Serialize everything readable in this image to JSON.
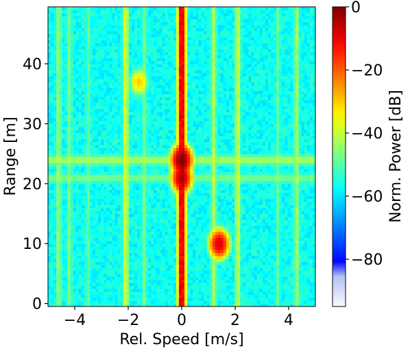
{
  "chart_data": {
    "type": "heatmap",
    "title": "",
    "xlabel": "Rel. Speed [m/s]",
    "ylabel": "Range [m]",
    "xlim": [
      -5,
      5
    ],
    "ylim": [
      -0.5,
      49.5
    ],
    "x_ticks": [
      -4,
      -2,
      0,
      2,
      4
    ],
    "x_tick_labels": [
      "−4",
      "−2",
      "0",
      "2",
      "4"
    ],
    "y_ticks": [
      0,
      10,
      20,
      30,
      40
    ],
    "y_tick_labels": [
      "0",
      "10",
      "20",
      "30",
      "40"
    ],
    "colorbar": {
      "label": "Norm. Power [dB]",
      "range": [
        -95,
        0
      ],
      "ticks": [
        0,
        -20,
        -40,
        -60,
        -80
      ],
      "tick_labels": [
        "0",
        "−20",
        "−40",
        "−60",
        "−80"
      ],
      "colormap": "jet"
    },
    "background_level_db": -57,
    "vertical_streaks": [
      {
        "x": 0.0,
        "level_db": -8
      },
      {
        "x": 1.2,
        "level_db": -42
      },
      {
        "x": -2.1,
        "level_db": -38
      },
      {
        "x": 2.1,
        "level_db": -40
      },
      {
        "x": -4.6,
        "level_db": -45
      },
      {
        "x": -4.2,
        "level_db": -47
      },
      {
        "x": 4.3,
        "level_db": -44
      },
      {
        "x": 3.6,
        "level_db": -50
      },
      {
        "x": -3.5,
        "level_db": -50
      },
      {
        "x": -1.4,
        "level_db": -48
      }
    ],
    "horizontal_bands": [
      {
        "y": 24,
        "level_db": -43
      },
      {
        "y": 21,
        "level_db": -48
      }
    ],
    "targets": [
      {
        "x": 0.0,
        "y": 24,
        "level_db": 0
      },
      {
        "x": 0.0,
        "y": 21,
        "level_db": -5
      },
      {
        "x": 1.4,
        "y": 10,
        "level_db": -8
      },
      {
        "x": -1.6,
        "y": 37,
        "level_db": -30
      }
    ],
    "grid": false
  }
}
